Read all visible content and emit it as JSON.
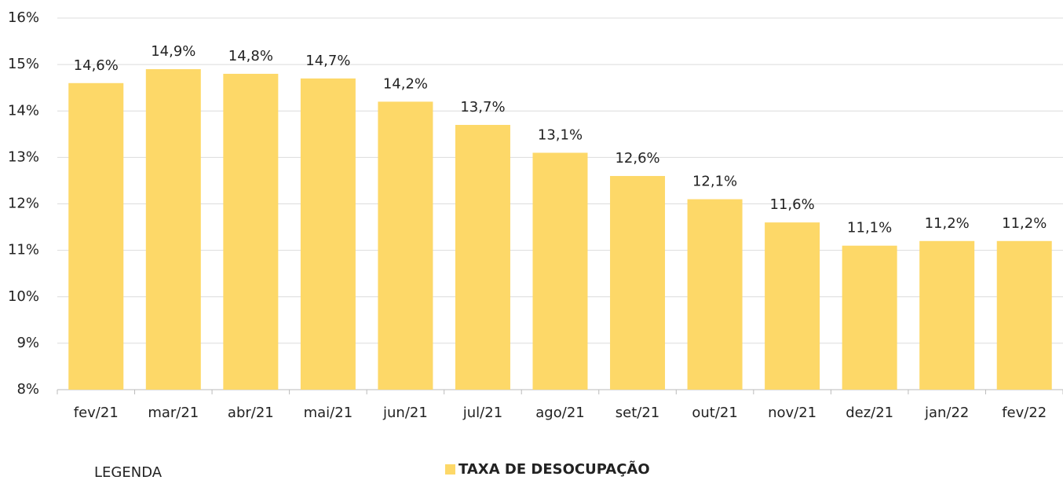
{
  "chart_data": {
    "type": "bar",
    "categories": [
      "fev/21",
      "mar/21",
      "abr/21",
      "mai/21",
      "jun/21",
      "jul/21",
      "ago/21",
      "set/21",
      "out/21",
      "nov/21",
      "dez/21",
      "jan/22",
      "fev/22"
    ],
    "series": [
      {
        "name": "TAXA DE DESOCUPAÇÃO",
        "color": "#fdd868",
        "values": [
          14.6,
          14.9,
          14.8,
          14.7,
          14.2,
          13.7,
          13.1,
          12.6,
          12.1,
          11.6,
          11.1,
          11.2,
          11.2
        ],
        "value_labels": [
          "14,6%",
          "14,9%",
          "14,8%",
          "14,7%",
          "14,2%",
          "13,7%",
          "13,1%",
          "12,6%",
          "12,1%",
          "11,6%",
          "11,1%",
          "11,2%",
          "11,2%"
        ]
      }
    ],
    "ylim": [
      8,
      16
    ],
    "yticks": [
      {
        "value": 8,
        "label": "8%"
      },
      {
        "value": 9,
        "label": "9%"
      },
      {
        "value": 10,
        "label": "10%"
      },
      {
        "value": 11,
        "label": "11%"
      },
      {
        "value": 12,
        "label": "12%"
      },
      {
        "value": 13,
        "label": "13%"
      },
      {
        "value": 14,
        "label": "14%"
      },
      {
        "value": 15,
        "label": "15%"
      },
      {
        "value": 16,
        "label": "16%"
      }
    ],
    "grid": true,
    "legend_title": "LEGENDA",
    "legend_position": "bottom"
  }
}
